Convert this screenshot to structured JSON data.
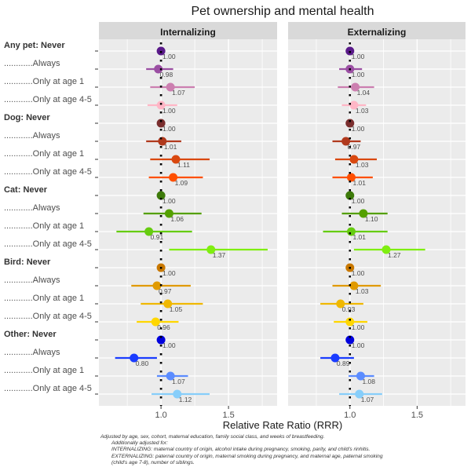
{
  "chart_data": {
    "type": "forest",
    "title": "Pet ownership and mental health",
    "xlabel": "Relative Rate Ratio (RRR)",
    "ylabel": "",
    "xlim": [
      0.54,
      1.86
    ],
    "x_ticks": [
      1.0,
      1.5
    ],
    "x_tick_labels": [
      "1.0",
      "1.5"
    ],
    "x_minor_gridlines": [
      0.75,
      1.25,
      1.75
    ],
    "reference_line": 1.0,
    "grid": true,
    "panels": [
      "Internalizing",
      "Externalizing"
    ],
    "categories": [
      "Any pet: Never",
      "............Always",
      "............Only at age 1",
      "............Only at age 4-5",
      "Dog: Never",
      "............Always",
      "............Only at age 1",
      "............Only at age 4-5",
      "Cat: Never",
      "............Always",
      "............Only at age 1",
      "............Only at age 4-5",
      "Bird: Never",
      "............Always",
      "............Only at age 1",
      "............Only at age 4-5",
      "Other: Never",
      "............Always",
      "............Only at age 1",
      "............Only at age 4-5"
    ],
    "bold_categories": [
      0,
      4,
      8,
      12,
      16
    ],
    "colors": [
      "#5a1a8a",
      "#9b4fa3",
      "#cc7fb0",
      "#ffb6c6",
      "#7a2e2e",
      "#b0391d",
      "#d9480f",
      "#ff4f00",
      "#3d7a0a",
      "#54a000",
      "#66cc10",
      "#7fee10",
      "#c87800",
      "#e09a00",
      "#f0b800",
      "#ffd700",
      "#0000dd",
      "#1a3cff",
      "#5b8cff",
      "#87cefa"
    ],
    "series": [
      {
        "name": "Internalizing",
        "estimates": [
          1.0,
          0.98,
          1.07,
          1.0,
          1.0,
          1.01,
          1.11,
          1.09,
          1.0,
          1.06,
          0.91,
          1.37,
          1.0,
          0.97,
          1.05,
          0.96,
          1.0,
          0.8,
          1.07,
          1.12
        ],
        "ci_low": [
          null,
          0.89,
          0.92,
          0.9,
          null,
          0.89,
          0.92,
          0.91,
          null,
          0.87,
          0.67,
          1.06,
          null,
          0.78,
          0.85,
          0.82,
          null,
          0.66,
          0.97,
          0.93
        ],
        "ci_high": [
          null,
          1.09,
          1.25,
          1.12,
          null,
          1.15,
          1.36,
          1.31,
          null,
          1.3,
          1.23,
          1.79,
          null,
          1.22,
          1.31,
          1.13,
          null,
          0.97,
          1.2,
          1.36
        ],
        "labels": [
          "1.00",
          "0.98",
          "1.07",
          "1.00",
          "1.00",
          "1.01",
          "1.11",
          "1.09",
          "1.00",
          "1.06",
          "0.91",
          "1.37",
          "1.00",
          "0.97",
          "1.05",
          "0.96",
          "1.00",
          "0.80",
          "1.07",
          "1.12"
        ]
      },
      {
        "name": "Externalizing",
        "estimates": [
          1.0,
          1.0,
          1.04,
          1.03,
          1.0,
          0.97,
          1.03,
          1.01,
          1.0,
          1.1,
          1.01,
          1.27,
          1.0,
          1.03,
          0.93,
          1.0,
          1.0,
          0.89,
          1.08,
          1.07
        ],
        "ci_low": [
          null,
          0.92,
          0.91,
          0.94,
          null,
          0.87,
          0.89,
          0.87,
          null,
          0.94,
          0.8,
          1.03,
          null,
          0.87,
          0.78,
          0.88,
          null,
          0.78,
          0.99,
          0.92
        ],
        "ci_high": [
          null,
          1.09,
          1.18,
          1.12,
          null,
          1.08,
          1.2,
          1.17,
          null,
          1.28,
          1.28,
          1.56,
          null,
          1.23,
          1.1,
          1.13,
          null,
          1.03,
          1.18,
          1.24
        ],
        "labels": [
          "1.00",
          "1.00",
          "1.04",
          "1.03",
          "1.00",
          "0.97",
          "1.03",
          "1.01",
          "1.00",
          "1.10",
          "1.01",
          "1.27",
          "1.00",
          "1.03",
          "0.93",
          "1.00",
          "1.00",
          "0.89",
          "1.08",
          "1.07"
        ]
      }
    ]
  },
  "footnote": {
    "line1": "Adjusted by age, sex, cohort, maternal education, family social class, and weeks of breastfeeding.",
    "line2": "Additionally adjusted for:",
    "line3": "INTERNALIZING: maternal country of origin, alcohol intake during pregnancy, smoking, parity, and child's rinhitis.",
    "line4": "EXTERNALIZING: paternal country of origin, maternal smoking during pregnancy, and maternal age, paternal smoking",
    "line5": "(child's age 7-8), number of siblings."
  }
}
